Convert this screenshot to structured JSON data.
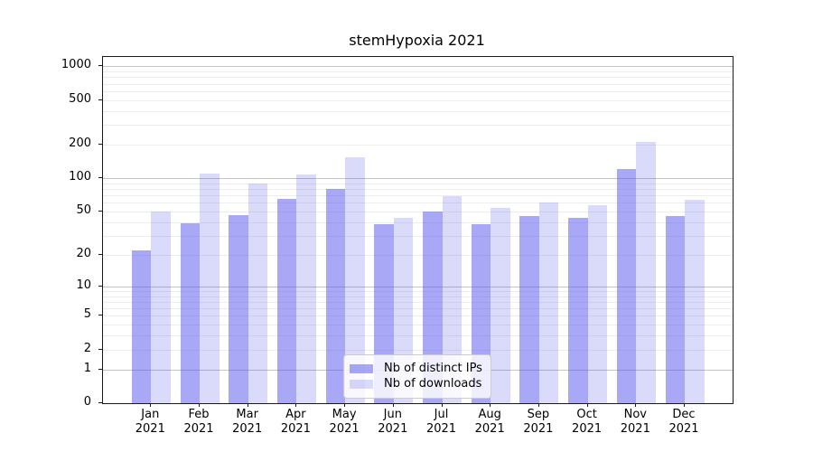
{
  "title": "stemHypoxia 2021",
  "chart_data": {
    "type": "bar",
    "title": "stemHypoxia 2021",
    "categories": [
      "Jan",
      "Feb",
      "Mar",
      "Apr",
      "May",
      "Jun",
      "Jul",
      "Aug",
      "Sep",
      "Oct",
      "Nov",
      "Dec"
    ],
    "year_label": "2021",
    "series": [
      {
        "name": "Nb of distinct IPs",
        "color": "rgba(82,82,237,0.5)",
        "values": [
          22,
          39,
          46,
          65,
          80,
          38,
          50,
          38,
          45,
          44,
          120,
          45
        ]
      },
      {
        "name": "Nb of downloads",
        "color": "rgba(82,82,237,0.21)",
        "values": [
          50,
          110,
          90,
          107,
          155,
          44,
          69,
          54,
          60,
          57,
          210,
          64
        ]
      }
    ],
    "yscale": "log1p",
    "yticks": [
      0,
      1,
      2,
      5,
      10,
      20,
      50,
      100,
      200,
      500,
      1000
    ],
    "major_grid_values": [
      1,
      10,
      100,
      1000
    ],
    "minor_grid_base": [
      2,
      3,
      4,
      5,
      6,
      7,
      8,
      9
    ],
    "ylim": [
      0,
      1210
    ],
    "grid": true,
    "legend_position": "lower center"
  }
}
